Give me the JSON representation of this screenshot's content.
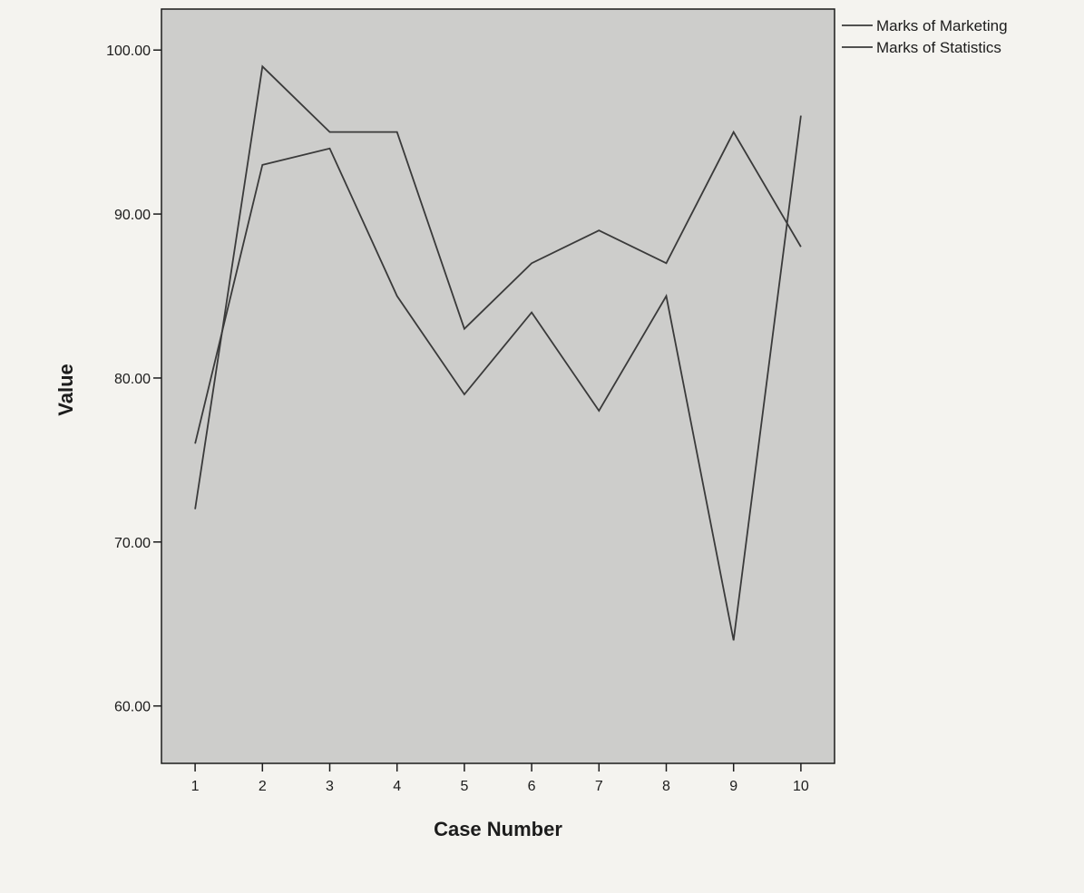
{
  "chart_data": {
    "type": "line",
    "title": "",
    "xlabel": "Case Number",
    "ylabel": "Value",
    "categories": [
      "1",
      "2",
      "3",
      "4",
      "5",
      "6",
      "7",
      "8",
      "9",
      "10"
    ],
    "x": [
      1,
      2,
      3,
      4,
      5,
      6,
      7,
      8,
      9,
      10
    ],
    "xlim": [
      0.5,
      10.5
    ],
    "ylim": [
      56.5,
      102.5
    ],
    "yticks": [
      60,
      70,
      80,
      90,
      100
    ],
    "ytick_labels": [
      "60.00",
      "70.00",
      "80.00",
      "90.00",
      "100.00"
    ],
    "grid": false,
    "legend_position": "top-right",
    "series": [
      {
        "name": "Marks of Marketing",
        "values": [
          72,
          99,
          95,
          95,
          83,
          87,
          89,
          87,
          95,
          88
        ]
      },
      {
        "name": "Marks of Statistics",
        "values": [
          76,
          93,
          94,
          85,
          79,
          84,
          78,
          85,
          64,
          96
        ]
      }
    ],
    "colors": {
      "plot_background": "#cdcdcb",
      "page_background": "#f4f3ef",
      "line": "#3a3a3a",
      "axis": "#1c1c1c"
    }
  }
}
